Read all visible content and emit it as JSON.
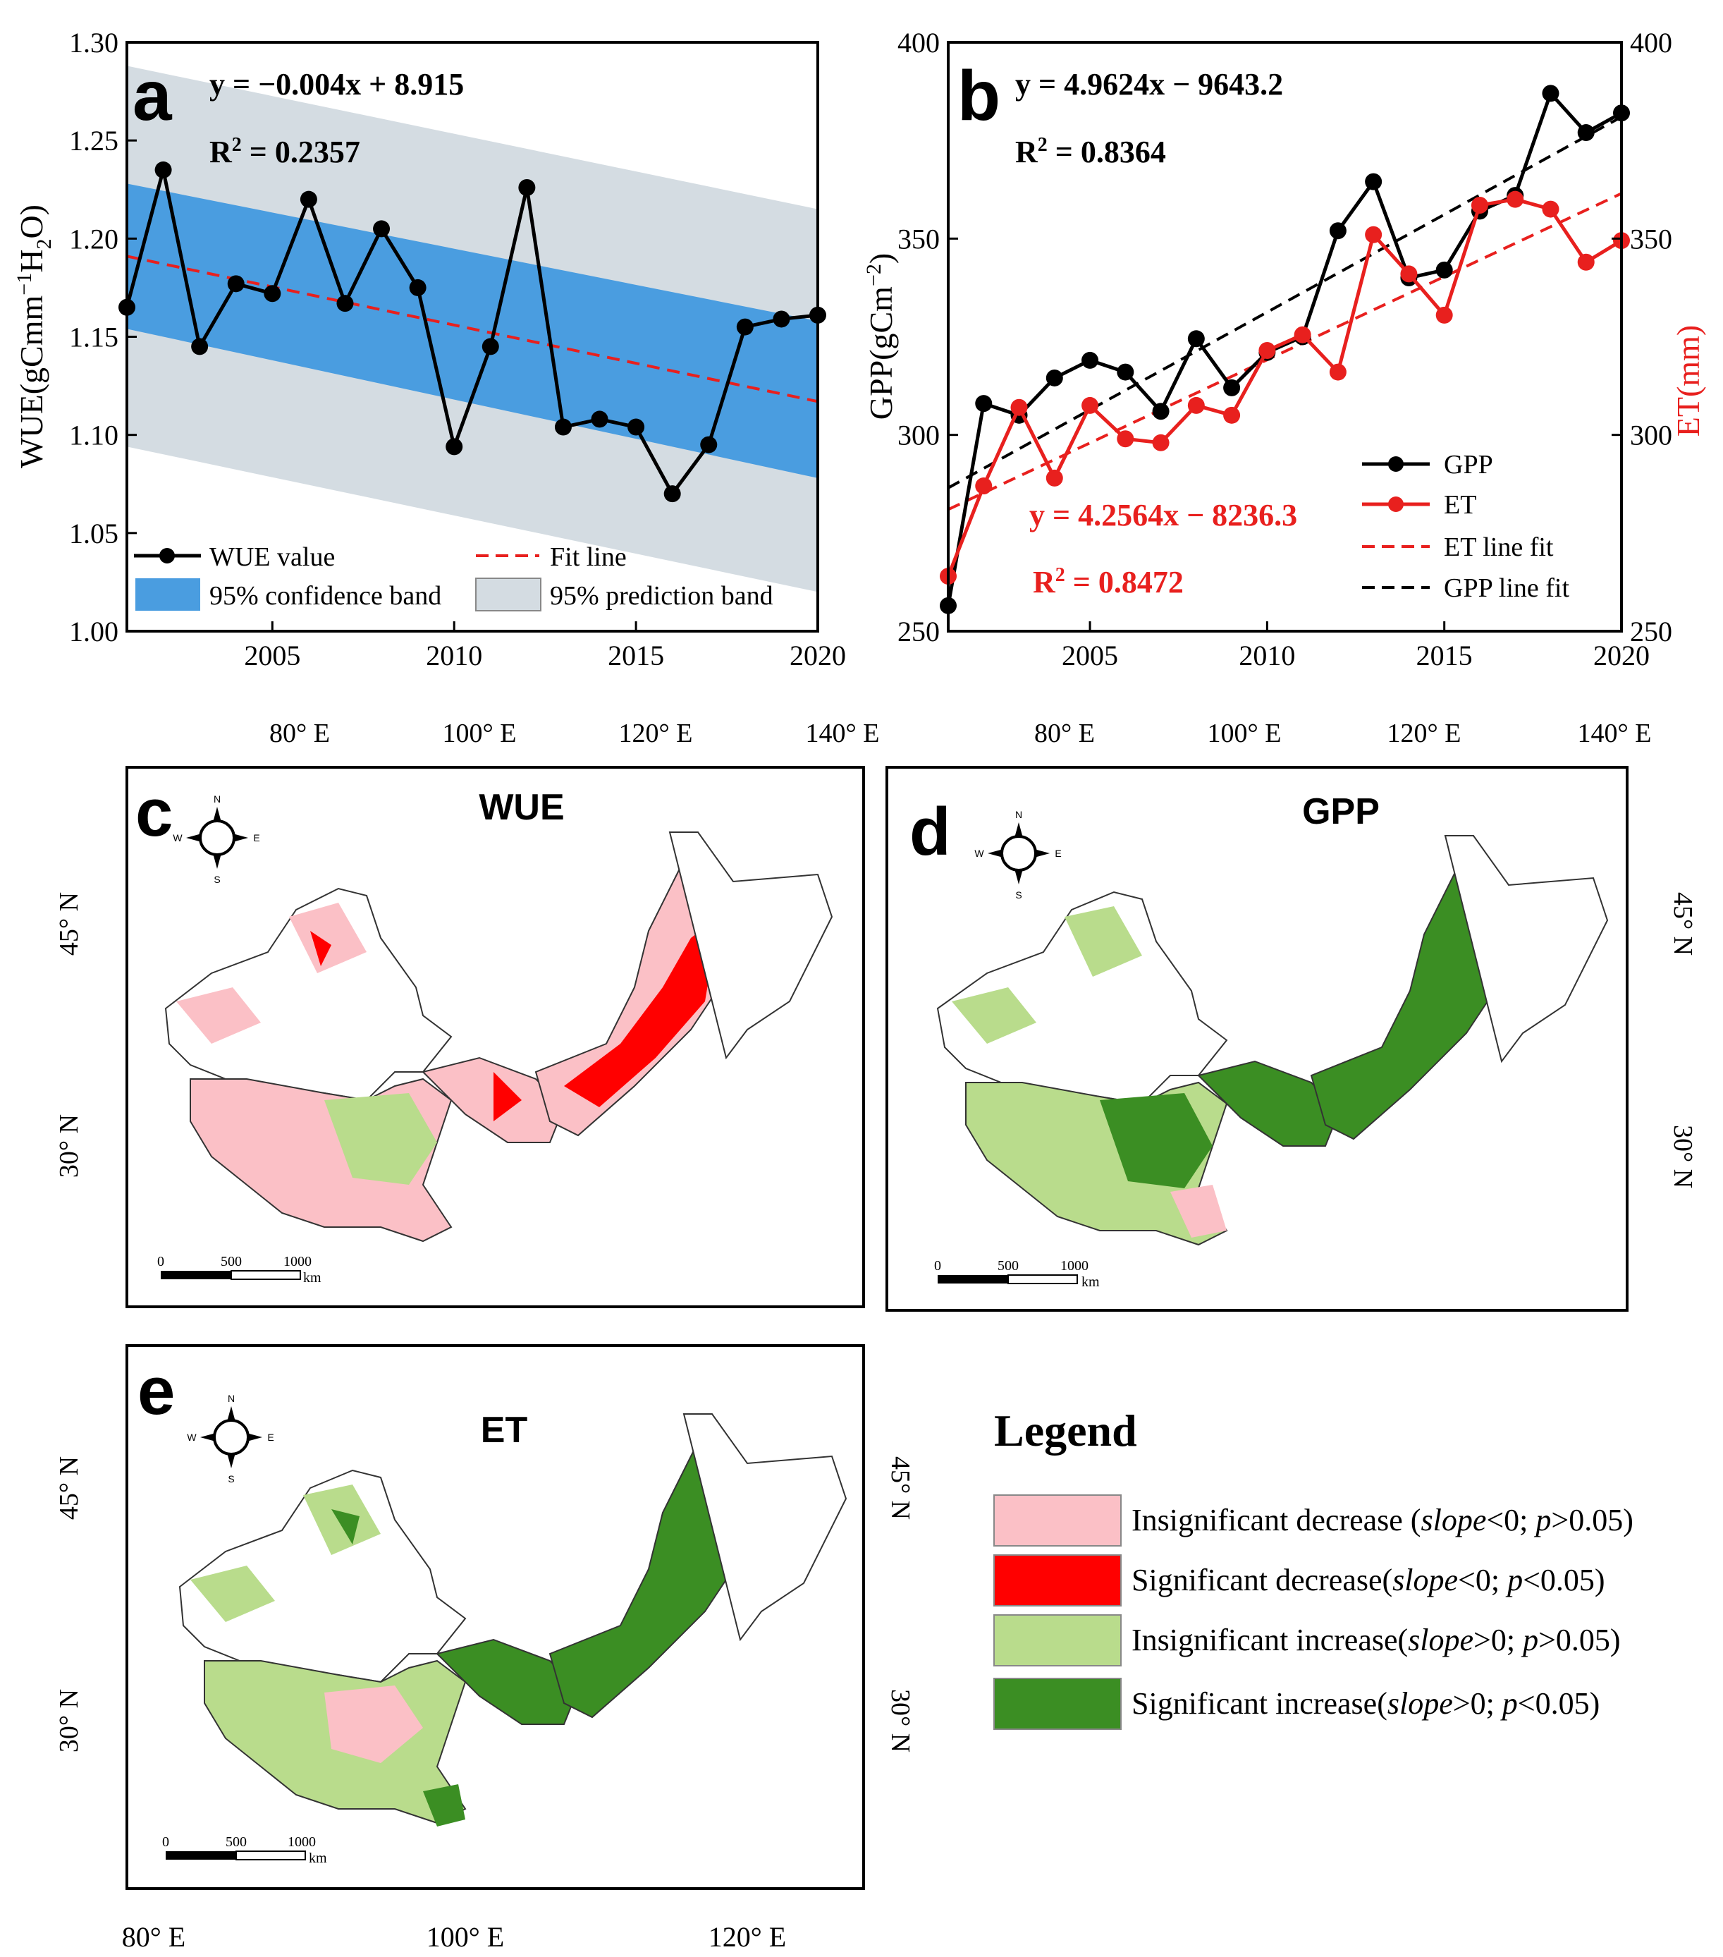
{
  "chart_data": [
    {
      "panel": "a",
      "type": "line",
      "ylabel": "WUE(gCmm⁻¹H₂O)",
      "ylim": [
        1.0,
        1.3
      ],
      "xlim": [
        2001,
        2020
      ],
      "x_ticks": [
        "2005",
        "2010",
        "2015",
        "2020"
      ],
      "y_ticks": [
        "1.00",
        "1.05",
        "1.10",
        "1.15",
        "1.20",
        "1.25",
        "1.30"
      ],
      "equation": "y = −0.004x + 8.915",
      "r2_prefix": "R",
      "r2_sup": "2",
      "r2_value": " = 0.2357",
      "x": [
        2001,
        2002,
        2003,
        2004,
        2005,
        2006,
        2007,
        2008,
        2009,
        2010,
        2011,
        2012,
        2013,
        2014,
        2015,
        2016,
        2017,
        2018,
        2019,
        2020
      ],
      "series": [
        {
          "name": "WUE value",
          "color": "#000000",
          "values": [
            1.165,
            1.235,
            1.145,
            1.177,
            1.172,
            1.22,
            1.167,
            1.205,
            1.175,
            1.094,
            1.145,
            1.226,
            1.104,
            1.108,
            1.104,
            1.07,
            1.095,
            1.155,
            1.159,
            1.161
          ]
        }
      ],
      "fit_line": {
        "name": "Fit line",
        "color": "#e8201e",
        "y_start": 1.191,
        "y_end": 1.117
      },
      "confidence_band": {
        "name": "95% confidence band",
        "color": "#4a9de0",
        "upper": [
          1.228,
          1.158
        ],
        "lower": [
          1.154,
          1.078
        ]
      },
      "prediction_band": {
        "name": "95% prediction band",
        "color": "#d4dce2",
        "upper": [
          1.288,
          1.215
        ],
        "lower": [
          1.094,
          1.02
        ]
      },
      "legend": [
        "WUE value",
        "Fit line",
        "95% confidence band",
        "95% prediction band"
      ],
      "grid": false
    },
    {
      "panel": "b",
      "type": "line",
      "ylabel_left": "GPP(gCm⁻²)",
      "ylabel_right": "ET(mm)",
      "ylim": [
        250,
        400
      ],
      "xlim": [
        2001,
        2020
      ],
      "x_ticks": [
        "2005",
        "2010",
        "2015",
        "2020"
      ],
      "y_ticks": [
        "250",
        "300",
        "350",
        "400"
      ],
      "gpp_equation": "y = 4.9624x − 9643.2",
      "gpp_r2_prefix": "R",
      "gpp_r2_sup": "2",
      "gpp_r2_value": " = 0.8364",
      "et_equation": "y = 4.2564x − 8236.3",
      "et_r2_prefix": "R",
      "et_r2_sup": "2",
      "et_r2_value": " = 0.8472",
      "x": [
        2001,
        2002,
        2003,
        2004,
        2005,
        2006,
        2007,
        2008,
        2009,
        2010,
        2011,
        2012,
        2013,
        2014,
        2015,
        2016,
        2017,
        2018,
        2019,
        2020
      ],
      "series": [
        {
          "name": "GPP",
          "color": "#000000",
          "values": [
            256.5,
            308,
            305,
            314.5,
            319,
            316,
            306,
            324.5,
            312,
            321,
            325,
            352,
            364.5,
            340,
            342,
            357,
            361,
            387,
            377,
            382
          ]
        },
        {
          "name": "ET",
          "color": "#e8201e",
          "values": [
            264,
            287,
            307,
            289,
            307.5,
            299,
            298,
            307.5,
            305,
            321.5,
            325.5,
            316,
            351,
            341,
            330.5,
            358.5,
            360,
            357.5,
            344,
            349.5
          ]
        }
      ],
      "fit_lines": [
        {
          "name": "ET line fit",
          "color": "#e8201e",
          "y_start": 281,
          "y_end": 361.5
        },
        {
          "name": "GPP line fit",
          "color": "#000000",
          "y_start": 286.5,
          "y_end": 381
        }
      ],
      "legend": [
        "GPP",
        "ET",
        "ET line fit",
        "GPP line fit"
      ],
      "grid": false
    }
  ],
  "maps": {
    "c": {
      "letter": "c",
      "title": "WUE",
      "top_lon": [
        "80° E",
        "100° E",
        "120° E",
        "140° E"
      ],
      "left_lat": [
        "45° N",
        "30° N"
      ]
    },
    "d": {
      "letter": "d",
      "title": "GPP",
      "top_lon": [
        "80° E",
        "100° E",
        "120° E",
        "140° E"
      ],
      "right_lat": [
        "45° N",
        "30° N"
      ]
    },
    "e": {
      "letter": "e",
      "title": "ET",
      "bottom_lon": [
        "80° E",
        "100° E",
        "120° E"
      ],
      "left_lat": [
        "45° N",
        "30° N"
      ],
      "right_lat": [
        "45° N",
        "30° N"
      ]
    },
    "compass": {
      "n": "N",
      "s": "S",
      "w": "W",
      "e": "E"
    },
    "scalebar": {
      "t0": "0",
      "t1": "500",
      "t2": "1000",
      "unit": "km"
    }
  },
  "legend": {
    "title": "Legend",
    "items": [
      {
        "color": "#fbc0c6",
        "pre": "Insignificant decrease (",
        "italic1": "slope",
        "mid": "<0; ",
        "italic2": "p",
        "post": ">0.05)"
      },
      {
        "color": "#ff0000",
        "pre": "Significant decrease(",
        "italic1": "slope",
        "mid": "<0; ",
        "italic2": "p",
        "post": "<0.05)"
      },
      {
        "color": "#b9dc8c",
        "pre": "Insignificant increase(",
        "italic1": "slope",
        "mid": ">0; ",
        "italic2": "p",
        "post": ">0.05)"
      },
      {
        "color": "#3b8e23",
        "pre": "Significant increase(",
        "italic1": "slope",
        "mid": ">0; ",
        "italic2": "p",
        "post": "<0.05)"
      }
    ]
  }
}
